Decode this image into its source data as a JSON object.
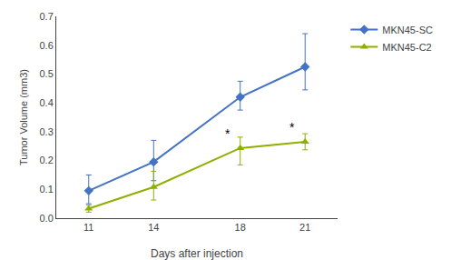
{
  "chart_data": {
    "type": "line",
    "x": [
      11,
      14,
      18,
      21
    ],
    "series": [
      {
        "name": "MKN45-SC",
        "color": "#4472C4",
        "marker": "diamond",
        "values": [
          0.095,
          0.195,
          0.42,
          0.525
        ],
        "yerr_lower": [
          0.045,
          0.065,
          0.045,
          0.08
        ],
        "yerr_upper": [
          0.055,
          0.075,
          0.055,
          0.115
        ]
      },
      {
        "name": "MKN45-C2",
        "color": "#8DB000",
        "marker": "triangle-up",
        "values": [
          0.033,
          0.108,
          0.243,
          0.265
        ],
        "yerr_lower": [
          0.012,
          0.045,
          0.058,
          0.028
        ],
        "yerr_upper": [
          0.012,
          0.055,
          0.038,
          0.028
        ]
      }
    ],
    "xlabel": "Days after injection",
    "ylabel": "Tumor Volume (mm3)",
    "xlim": [
      9.5,
      22.5
    ],
    "xticks": [
      11,
      14,
      18,
      21
    ],
    "ylim": [
      0,
      0.7
    ],
    "yticks": [
      {
        "value": 0,
        "label": "0.0"
      },
      0.1,
      0.2,
      0.3,
      0.4,
      0.5,
      0.6,
      0.7
    ],
    "annotations": [
      {
        "text": "*",
        "x": 18,
        "y": 0.243
      },
      {
        "text": "*",
        "x": 21,
        "y": 0.265
      }
    ],
    "grid": false,
    "legend": "right"
  }
}
